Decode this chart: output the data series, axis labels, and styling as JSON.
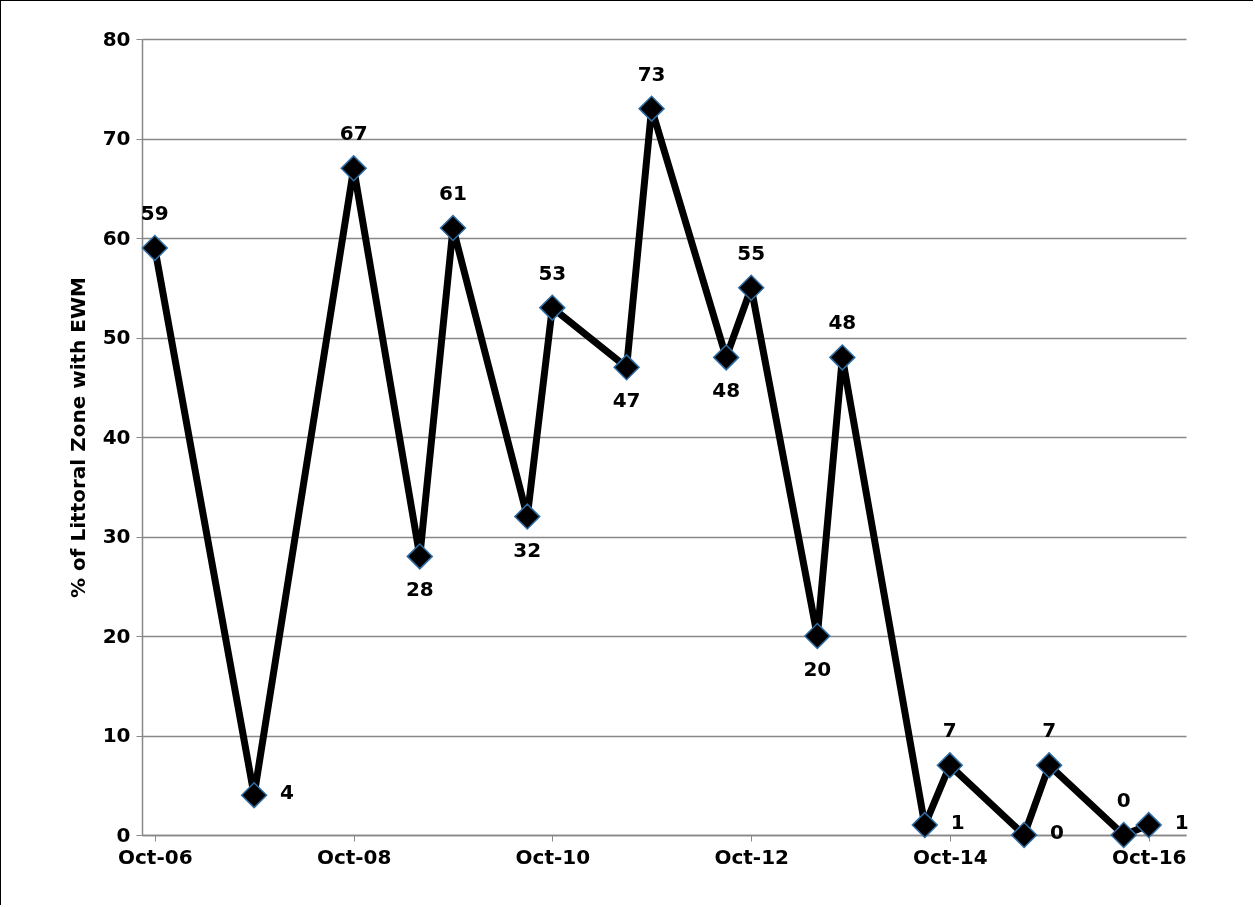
{
  "chart_data": {
    "type": "line",
    "ylabel": "% of Littoral Zone with EWM",
    "x": [
      "2006-10",
      "2007-10",
      "2008-10",
      "2009-06",
      "2009-10",
      "2010-07",
      "2010-10",
      "2011-07",
      "2011-10",
      "2012-07",
      "2012-10",
      "2013-06",
      "2013-09",
      "2014-07",
      "2014-10",
      "2015-07",
      "2015-10",
      "2016-07",
      "2016-10"
    ],
    "series": [
      {
        "color": "#000000",
        "values": [
          59,
          4,
          67,
          28,
          61,
          32,
          53,
          47,
          73,
          48,
          55,
          20,
          48,
          1,
          7,
          0,
          7,
          0,
          1
        ]
      }
    ],
    "xlim": [
      "2006-08-15",
      "2017-02-15"
    ],
    "xticks": [
      {
        "value": "2006-10",
        "label": "Oct-06"
      },
      {
        "value": "2008-10",
        "label": "Oct-08"
      },
      {
        "value": "2010-10",
        "label": "Oct-10"
      },
      {
        "value": "2012-10",
        "label": "Oct-12"
      },
      {
        "value": "2014-10",
        "label": "Oct-14"
      },
      {
        "value": "2016-10",
        "label": "Oct-16"
      }
    ],
    "ylim": [
      0,
      80
    ],
    "yticks": [
      0,
      10,
      20,
      30,
      40,
      50,
      60,
      70,
      80
    ],
    "grid": "y",
    "marker": "diamond",
    "line_style": "solid",
    "data_labels": true
  }
}
